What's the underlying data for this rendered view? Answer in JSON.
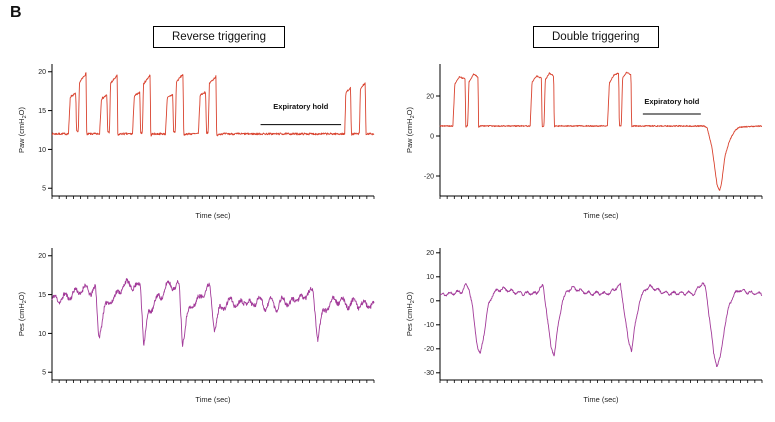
{
  "figure": {
    "panel_label": "B",
    "column_titles": [
      "Reverse triggering",
      "Double triggering"
    ]
  },
  "chart_data": [
    {
      "id": "paw-reverse-triggering",
      "type": "line",
      "group": "Reverse triggering",
      "ylabel": "Paw (cmH2O)",
      "ylabel_parts": [
        {
          "t": "Paw (cmH"
        },
        {
          "t": "2",
          "sub": true
        },
        {
          "t": "O)"
        }
      ],
      "xlabel": "Time (sec)",
      "color": "#d9432f",
      "ylim": [
        4,
        21
      ],
      "yticks": [
        20,
        15,
        10,
        5
      ],
      "xlim": [
        0,
        88
      ],
      "x_minor_ticks": 45,
      "noise": 0.13,
      "seed": 7,
      "oscillation": {
        "amp": 0,
        "period": 1
      },
      "annotation": {
        "label": "Expiratory hold",
        "x1": 57,
        "x2": 79,
        "y": 13.2,
        "label_y": 15.2
      },
      "anchors": [
        [
          0,
          12
        ],
        [
          4.2,
          12
        ],
        [
          4.5,
          12
        ],
        [
          5,
          16.8
        ],
        [
          6.5,
          17.2
        ],
        [
          6.7,
          12.3
        ],
        [
          7.2,
          12.2
        ],
        [
          7.5,
          18.6
        ],
        [
          9.3,
          19.8
        ],
        [
          9.5,
          11.8
        ],
        [
          10,
          12
        ],
        [
          13,
          12
        ],
        [
          13.5,
          16.5
        ],
        [
          15,
          17
        ],
        [
          15.2,
          12.3
        ],
        [
          15.7,
          12.2
        ],
        [
          16,
          18.5
        ],
        [
          17.8,
          19.5
        ],
        [
          18,
          11.7
        ],
        [
          18.5,
          12
        ],
        [
          22,
          12
        ],
        [
          22.5,
          16.9
        ],
        [
          24,
          17.3
        ],
        [
          24.2,
          12.2
        ],
        [
          24.7,
          12.1
        ],
        [
          25,
          18.4
        ],
        [
          26.8,
          19.6
        ],
        [
          27,
          11.8
        ],
        [
          27.5,
          12
        ],
        [
          31,
          12
        ],
        [
          31.5,
          16.6
        ],
        [
          33,
          17.1
        ],
        [
          33.2,
          12.3
        ],
        [
          33.7,
          12.2
        ],
        [
          34,
          18.7
        ],
        [
          35.8,
          19.7
        ],
        [
          36,
          11.8
        ],
        [
          36.5,
          12
        ],
        [
          40,
          12
        ],
        [
          40.5,
          17
        ],
        [
          42,
          17.4
        ],
        [
          42.2,
          12.2
        ],
        [
          42.7,
          12.1
        ],
        [
          43,
          18.5
        ],
        [
          44.8,
          19.4
        ],
        [
          45,
          11.7
        ],
        [
          45.5,
          12
        ],
        [
          55,
          12
        ],
        [
          79.5,
          12
        ],
        [
          80,
          12
        ],
        [
          80.3,
          17.3
        ],
        [
          81.6,
          18
        ],
        [
          81.8,
          11.9
        ],
        [
          82.3,
          12
        ],
        [
          84,
          12
        ],
        [
          84.3,
          17.8
        ],
        [
          85.6,
          18.6
        ],
        [
          85.8,
          11.8
        ],
        [
          86.3,
          12
        ],
        [
          88,
          12
        ]
      ]
    },
    {
      "id": "paw-double-triggering",
      "type": "line",
      "group": "Double triggering",
      "ylabel": "Paw (cmH2O)",
      "ylabel_parts": [
        {
          "t": "Paw (cmH"
        },
        {
          "t": "2",
          "sub": true
        },
        {
          "t": "O)"
        }
      ],
      "xlabel": "Time (sec)",
      "color": "#d9432f",
      "ylim": [
        -30,
        36
      ],
      "yticks": [
        20,
        0,
        -20
      ],
      "xlim": [
        0,
        100
      ],
      "x_minor_ticks": 45,
      "noise": 0.3,
      "seed": 9,
      "oscillation": {
        "amp": 0,
        "period": 1
      },
      "annotation": {
        "label": "Expiratory hold",
        "x1": 63,
        "x2": 81,
        "y": 11,
        "label_y": 16
      },
      "anchors": [
        [
          0,
          5
        ],
        [
          3.8,
          5
        ],
        [
          4,
          5
        ],
        [
          4.6,
          26
        ],
        [
          6,
          29.5
        ],
        [
          7.8,
          28.5
        ],
        [
          8,
          4.5
        ],
        [
          8.6,
          5.2
        ],
        [
          9,
          27
        ],
        [
          10.5,
          31
        ],
        [
          11.8,
          29.5
        ],
        [
          12,
          4.6
        ],
        [
          12.6,
          5
        ],
        [
          28,
          5
        ],
        [
          28.6,
          27
        ],
        [
          30,
          30
        ],
        [
          31.5,
          29
        ],
        [
          31.7,
          4.6
        ],
        [
          32.3,
          5.1
        ],
        [
          32.7,
          28
        ],
        [
          34,
          31.5
        ],
        [
          35.3,
          30
        ],
        [
          35.5,
          4.7
        ],
        [
          36.1,
          5
        ],
        [
          52,
          5
        ],
        [
          52.6,
          26.5
        ],
        [
          54,
          30.5
        ],
        [
          55.5,
          31.5
        ],
        [
          55.7,
          4.7
        ],
        [
          56.3,
          5.1
        ],
        [
          56.7,
          29
        ],
        [
          58,
          32
        ],
        [
          59.3,
          30.5
        ],
        [
          59.5,
          4.8
        ],
        [
          60.1,
          5
        ],
        [
          82,
          5
        ],
        [
          83,
          4
        ],
        [
          84.5,
          -6
        ],
        [
          86,
          -24
        ],
        [
          86.8,
          -27.5
        ],
        [
          87.5,
          -23
        ],
        [
          88.5,
          -10
        ],
        [
          90,
          -2
        ],
        [
          91.5,
          2.5
        ],
        [
          93,
          4.5
        ],
        [
          100,
          5
        ]
      ]
    },
    {
      "id": "pes-reverse-triggering",
      "type": "line",
      "group": "Reverse triggering",
      "ylabel": "Pes (cmH2O)",
      "ylabel_parts": [
        {
          "t": "Pes (cmH"
        },
        {
          "t": "2",
          "sub": true
        },
        {
          "t": "O)"
        }
      ],
      "xlabel": "Time (sec)",
      "color": "#a23a99",
      "ylim": [
        4,
        21
      ],
      "yticks": [
        20,
        15,
        10,
        5
      ],
      "xlim": [
        0,
        100
      ],
      "x_minor_ticks": 45,
      "noise": 0.28,
      "seed": 11,
      "oscillation": {
        "amp": 0.5,
        "period": 3.2
      },
      "annotation": null,
      "anchors": [
        [
          0,
          14.3
        ],
        [
          4,
          14.6
        ],
        [
          7,
          15.2
        ],
        [
          10,
          15.8
        ],
        [
          12,
          15.4
        ],
        [
          13.5,
          15.8
        ],
        [
          14.5,
          9.4
        ],
        [
          16,
          12.8
        ],
        [
          18,
          14.3
        ],
        [
          20,
          14.8
        ],
        [
          22,
          16.2
        ],
        [
          24,
          16.4
        ],
        [
          26,
          15.9
        ],
        [
          27.5,
          16.3
        ],
        [
          28.5,
          8.7
        ],
        [
          30,
          12.5
        ],
        [
          32,
          14.2
        ],
        [
          34,
          14.8
        ],
        [
          35.5,
          16.1
        ],
        [
          37,
          16.3
        ],
        [
          38.5,
          16
        ],
        [
          39.5,
          16.2
        ],
        [
          40.5,
          8.9
        ],
        [
          42,
          12.3
        ],
        [
          44,
          14
        ],
        [
          46,
          14.4
        ],
        [
          47.5,
          15.7
        ],
        [
          49,
          15.9
        ],
        [
          50.5,
          10.6
        ],
        [
          52,
          13
        ],
        [
          54,
          13.8
        ],
        [
          56,
          14.2
        ],
        [
          58,
          13.6
        ],
        [
          60,
          14.4
        ],
        [
          62,
          13.5
        ],
        [
          64,
          14.6
        ],
        [
          66,
          13.4
        ],
        [
          68,
          14.2
        ],
        [
          70,
          13.3
        ],
        [
          72,
          14.5
        ],
        [
          74,
          13.6
        ],
        [
          76,
          14.8
        ],
        [
          78,
          14.2
        ],
        [
          79.5,
          15.6
        ],
        [
          81,
          15.2
        ],
        [
          82.5,
          9.6
        ],
        [
          84,
          12.4
        ],
        [
          86,
          13.8
        ],
        [
          88,
          14.4
        ],
        [
          90,
          14.1
        ],
        [
          92,
          13.7
        ],
        [
          94,
          14
        ],
        [
          96,
          13.6
        ],
        [
          98,
          13.8
        ],
        [
          100,
          13.5
        ]
      ]
    },
    {
      "id": "pes-double-triggering",
      "type": "line",
      "group": "Double triggering",
      "ylabel": "Pes (cmH2O)",
      "ylabel_parts": [
        {
          "t": "Pes (cmH"
        },
        {
          "t": "2",
          "sub": true
        },
        {
          "t": "O)"
        }
      ],
      "xlabel": "Time (sec)",
      "color": "#a23a99",
      "ylim": [
        -33,
        22
      ],
      "yticks": [
        20,
        10,
        0,
        -10,
        -20,
        -30
      ],
      "xlim": [
        0,
        100
      ],
      "x_minor_ticks": 45,
      "noise": 0.4,
      "seed": 13,
      "oscillation": {
        "amp": 0.6,
        "period": 2.4
      },
      "annotation": null,
      "anchors": [
        [
          0,
          2.5
        ],
        [
          3,
          3
        ],
        [
          5,
          3.5
        ],
        [
          7,
          4
        ],
        [
          8,
          6.5
        ],
        [
          9,
          5.5
        ],
        [
          10,
          -2
        ],
        [
          11.5,
          -18
        ],
        [
          12.5,
          -23
        ],
        [
          13.5,
          -15
        ],
        [
          15,
          -2
        ],
        [
          16.5,
          3
        ],
        [
          18,
          4.5
        ],
        [
          20,
          5
        ],
        [
          22,
          4
        ],
        [
          24,
          3.5
        ],
        [
          26,
          3
        ],
        [
          28,
          3.2
        ],
        [
          30,
          3
        ],
        [
          31,
          5.5
        ],
        [
          32,
          6
        ],
        [
          33,
          -3
        ],
        [
          34.5,
          -20
        ],
        [
          35.5,
          -22.5
        ],
        [
          36.5,
          -12
        ],
        [
          38,
          0
        ],
        [
          39.5,
          4
        ],
        [
          41,
          5.5
        ],
        [
          43,
          4.5
        ],
        [
          45,
          3.5
        ],
        [
          47,
          3
        ],
        [
          49,
          3.2
        ],
        [
          51,
          3
        ],
        [
          53,
          3.4
        ],
        [
          55,
          5.8
        ],
        [
          56,
          6.5
        ],
        [
          57,
          -2
        ],
        [
          58.5,
          -17
        ],
        [
          59.5,
          -20.5
        ],
        [
          60.5,
          -11
        ],
        [
          62,
          0
        ],
        [
          63.5,
          4.5
        ],
        [
          65,
          6
        ],
        [
          67,
          4.8
        ],
        [
          69,
          3.6
        ],
        [
          71,
          3
        ],
        [
          73,
          3.2
        ],
        [
          75,
          3
        ],
        [
          77,
          3.3
        ],
        [
          79,
          3
        ],
        [
          80.5,
          6
        ],
        [
          81.5,
          7.5
        ],
        [
          82.5,
          5
        ],
        [
          83.5,
          -5
        ],
        [
          85,
          -22
        ],
        [
          86,
          -27
        ],
        [
          87,
          -24
        ],
        [
          88.5,
          -10
        ],
        [
          90,
          -1
        ],
        [
          91.5,
          3
        ],
        [
          93,
          4.5
        ],
        [
          95,
          3.8
        ],
        [
          97,
          3.2
        ],
        [
          99,
          3
        ],
        [
          100,
          3
        ]
      ]
    }
  ]
}
